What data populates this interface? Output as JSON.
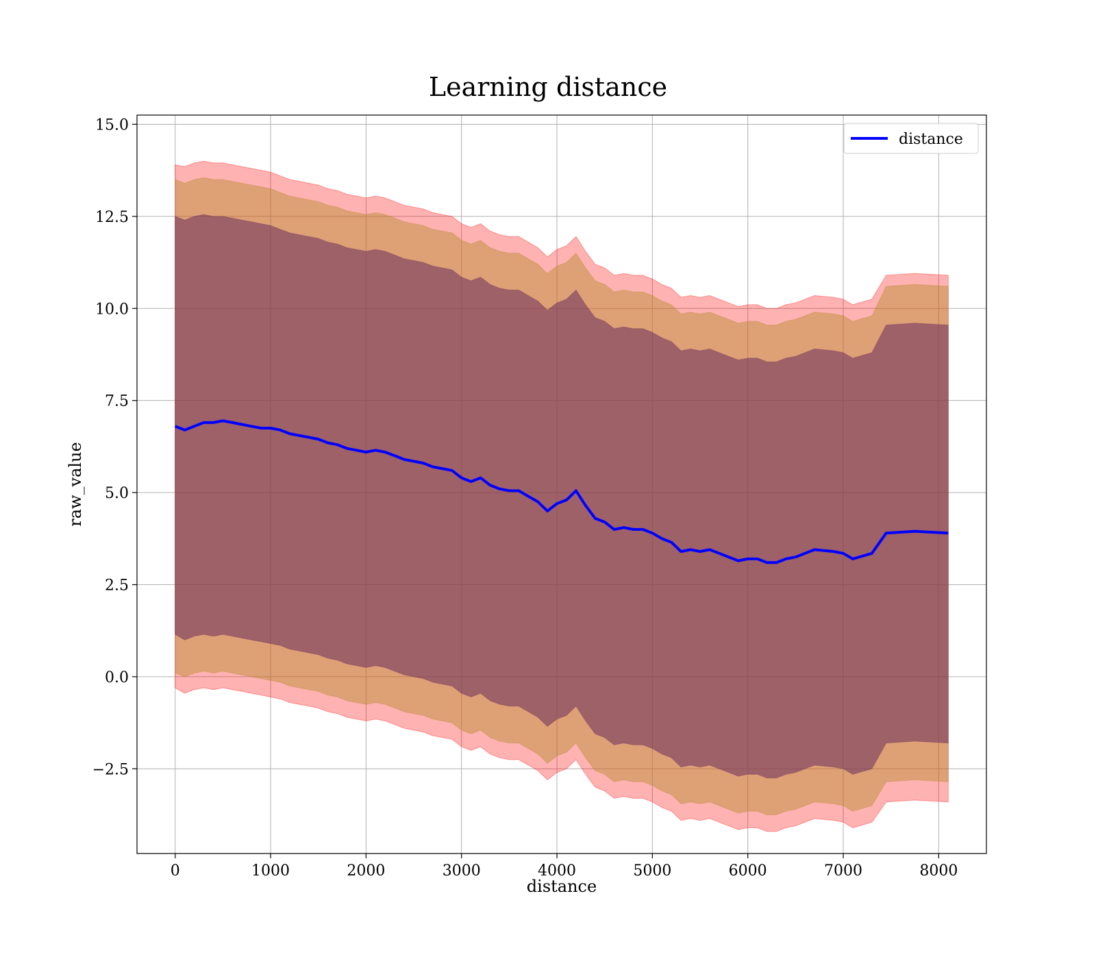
{
  "chart_data": {
    "type": "line",
    "title": "Learning distance",
    "xlabel": "distance",
    "ylabel": "raw_value",
    "xlim": [
      -400,
      8500
    ],
    "ylim": [
      -4.8,
      15.25
    ],
    "xticks": [
      0,
      1000,
      2000,
      3000,
      4000,
      5000,
      6000,
      7000,
      8000
    ],
    "yticks": [
      -2.5,
      0.0,
      2.5,
      5.0,
      7.5,
      10.0,
      12.5,
      15.0
    ],
    "ytick_labels": [
      "−2.5",
      "0.0",
      "2.5",
      "5.0",
      "7.5",
      "10.0",
      "12.5",
      "15.0"
    ],
    "grid": true,
    "legend": {
      "position": "top-right",
      "entries": [
        "distance"
      ]
    },
    "series": [
      {
        "name": "distance",
        "color": "#0000ff",
        "x": [
          0,
          100,
          200,
          300,
          400,
          500,
          600,
          700,
          800,
          900,
          1000,
          1100,
          1200,
          1300,
          1400,
          1500,
          1600,
          1700,
          1800,
          1900,
          2000,
          2100,
          2200,
          2300,
          2400,
          2500,
          2600,
          2700,
          2800,
          2900,
          3000,
          3100,
          3200,
          3300,
          3400,
          3500,
          3600,
          3700,
          3800,
          3900,
          4000,
          4100,
          4200,
          4300,
          4400,
          4500,
          4600,
          4700,
          4800,
          4900,
          5000,
          5100,
          5200,
          5300,
          5400,
          5500,
          5600,
          5700,
          5800,
          5900,
          6000,
          6100,
          6200,
          6300,
          6400,
          6500,
          6600,
          6700,
          6900,
          7000,
          7100,
          7300,
          7450,
          7750,
          8100
        ],
        "values": [
          6.8,
          6.7,
          6.8,
          6.9,
          6.9,
          6.95,
          6.9,
          6.85,
          6.8,
          6.75,
          6.75,
          6.7,
          6.6,
          6.55,
          6.5,
          6.45,
          6.35,
          6.3,
          6.2,
          6.15,
          6.1,
          6.15,
          6.1,
          6.0,
          5.9,
          5.85,
          5.8,
          5.7,
          5.65,
          5.6,
          5.4,
          5.3,
          5.4,
          5.2,
          5.1,
          5.05,
          5.05,
          4.9,
          4.75,
          4.5,
          4.7,
          4.8,
          5.05,
          4.65,
          4.3,
          4.2,
          4.0,
          4.05,
          4.0,
          4.0,
          3.9,
          3.75,
          3.65,
          3.4,
          3.45,
          3.4,
          3.45,
          3.35,
          3.25,
          3.15,
          3.2,
          3.2,
          3.1,
          3.1,
          3.2,
          3.25,
          3.35,
          3.45,
          3.4,
          3.35,
          3.2,
          3.35,
          3.9,
          3.95,
          3.9
        ]
      }
    ],
    "bands": [
      {
        "description_level": "outer",
        "color": "#ff0000",
        "upper": [
          13.9,
          13.85,
          13.95,
          14.0,
          13.95,
          13.95,
          13.9,
          13.85,
          13.8,
          13.75,
          13.7,
          13.6,
          13.5,
          13.45,
          13.4,
          13.35,
          13.25,
          13.2,
          13.1,
          13.05,
          13.0,
          13.05,
          13.0,
          12.9,
          12.8,
          12.75,
          12.7,
          12.6,
          12.55,
          12.5,
          12.3,
          12.2,
          12.3,
          12.1,
          12.0,
          11.95,
          11.95,
          11.8,
          11.65,
          11.4,
          11.6,
          11.7,
          11.95,
          11.55,
          11.2,
          11.1,
          10.9,
          10.95,
          10.9,
          10.9,
          10.8,
          10.65,
          10.55,
          10.3,
          10.35,
          10.3,
          10.35,
          10.25,
          10.15,
          10.05,
          10.1,
          10.1,
          10.0,
          10.0,
          10.1,
          10.15,
          10.25,
          10.35,
          10.3,
          10.25,
          10.1,
          10.25,
          10.9,
          10.95,
          10.9
        ],
        "lower": [
          -0.3,
          -0.45,
          -0.35,
          -0.3,
          -0.35,
          -0.3,
          -0.35,
          -0.4,
          -0.45,
          -0.5,
          -0.55,
          -0.6,
          -0.7,
          -0.75,
          -0.8,
          -0.85,
          -0.95,
          -1.0,
          -1.1,
          -1.15,
          -1.2,
          -1.15,
          -1.2,
          -1.3,
          -1.4,
          -1.45,
          -1.5,
          -1.6,
          -1.65,
          -1.7,
          -1.9,
          -2.0,
          -1.9,
          -2.1,
          -2.2,
          -2.25,
          -2.25,
          -2.4,
          -2.55,
          -2.8,
          -2.6,
          -2.5,
          -2.25,
          -2.65,
          -3.0,
          -3.1,
          -3.3,
          -3.25,
          -3.3,
          -3.3,
          -3.4,
          -3.55,
          -3.65,
          -3.9,
          -3.85,
          -3.9,
          -3.85,
          -3.95,
          -4.05,
          -4.15,
          -4.1,
          -4.1,
          -4.2,
          -4.2,
          -4.1,
          -4.05,
          -3.95,
          -3.85,
          -3.9,
          -3.95,
          -4.1,
          -3.95,
          -3.4,
          -3.35,
          -3.4
        ]
      },
      {
        "description_level": "middle",
        "color": "#b58a2a",
        "upper": [
          13.5,
          13.4,
          13.5,
          13.55,
          13.5,
          13.5,
          13.45,
          13.4,
          13.35,
          13.3,
          13.25,
          13.15,
          13.05,
          13.0,
          12.95,
          12.9,
          12.8,
          12.75,
          12.65,
          12.6,
          12.55,
          12.6,
          12.55,
          12.45,
          12.35,
          12.3,
          12.25,
          12.15,
          12.1,
          12.05,
          11.85,
          11.75,
          11.85,
          11.65,
          11.55,
          11.5,
          11.5,
          11.35,
          11.2,
          10.95,
          11.15,
          11.25,
          11.5,
          11.1,
          10.75,
          10.65,
          10.45,
          10.5,
          10.45,
          10.45,
          10.35,
          10.2,
          10.1,
          9.85,
          9.9,
          9.85,
          9.9,
          9.8,
          9.7,
          9.6,
          9.65,
          9.65,
          9.55,
          9.55,
          9.65,
          9.7,
          9.8,
          9.9,
          9.85,
          9.8,
          9.65,
          9.8,
          10.6,
          10.65,
          10.6
        ],
        "lower": [
          0.1,
          0.0,
          0.1,
          0.15,
          0.1,
          0.15,
          0.1,
          0.05,
          0.0,
          -0.05,
          -0.1,
          -0.15,
          -0.25,
          -0.3,
          -0.35,
          -0.4,
          -0.5,
          -0.55,
          -0.65,
          -0.7,
          -0.75,
          -0.7,
          -0.75,
          -0.85,
          -0.95,
          -1.0,
          -1.05,
          -1.15,
          -1.2,
          -1.25,
          -1.45,
          -1.55,
          -1.45,
          -1.65,
          -1.75,
          -1.8,
          -1.8,
          -1.95,
          -2.1,
          -2.35,
          -2.15,
          -2.05,
          -1.8,
          -2.2,
          -2.55,
          -2.65,
          -2.85,
          -2.8,
          -2.85,
          -2.85,
          -2.95,
          -3.1,
          -3.2,
          -3.45,
          -3.4,
          -3.45,
          -3.4,
          -3.5,
          -3.6,
          -3.7,
          -3.65,
          -3.65,
          -3.75,
          -3.75,
          -3.65,
          -3.6,
          -3.5,
          -3.4,
          -3.45,
          -3.5,
          -3.65,
          -3.5,
          -2.85,
          -2.8,
          -2.85
        ]
      },
      {
        "description_level": "inner",
        "color": "#6b2d5c",
        "upper": [
          12.5,
          12.4,
          12.5,
          12.55,
          12.5,
          12.5,
          12.45,
          12.4,
          12.35,
          12.3,
          12.25,
          12.15,
          12.05,
          12.0,
          11.95,
          11.9,
          11.8,
          11.75,
          11.65,
          11.6,
          11.55,
          11.6,
          11.55,
          11.45,
          11.35,
          11.3,
          11.25,
          11.15,
          11.1,
          11.05,
          10.85,
          10.75,
          10.85,
          10.65,
          10.55,
          10.5,
          10.5,
          10.35,
          10.2,
          9.95,
          10.15,
          10.25,
          10.5,
          10.1,
          9.75,
          9.65,
          9.45,
          9.5,
          9.45,
          9.45,
          9.35,
          9.2,
          9.1,
          8.85,
          8.9,
          8.85,
          8.9,
          8.8,
          8.7,
          8.6,
          8.65,
          8.65,
          8.55,
          8.55,
          8.65,
          8.7,
          8.8,
          8.9,
          8.85,
          8.8,
          8.65,
          8.8,
          9.55,
          9.6,
          9.55
        ],
        "lower": [
          1.15,
          1.0,
          1.1,
          1.15,
          1.1,
          1.15,
          1.1,
          1.05,
          1.0,
          0.95,
          0.9,
          0.85,
          0.75,
          0.7,
          0.65,
          0.6,
          0.5,
          0.45,
          0.35,
          0.3,
          0.25,
          0.3,
          0.25,
          0.15,
          0.05,
          0.0,
          -0.05,
          -0.15,
          -0.2,
          -0.25,
          -0.45,
          -0.55,
          -0.45,
          -0.65,
          -0.75,
          -0.8,
          -0.8,
          -0.95,
          -1.1,
          -1.35,
          -1.15,
          -1.05,
          -0.8,
          -1.2,
          -1.55,
          -1.65,
          -1.85,
          -1.8,
          -1.85,
          -1.85,
          -1.95,
          -2.1,
          -2.2,
          -2.45,
          -2.4,
          -2.45,
          -2.4,
          -2.5,
          -2.6,
          -2.7,
          -2.65,
          -2.65,
          -2.75,
          -2.75,
          -2.65,
          -2.6,
          -2.5,
          -2.4,
          -2.45,
          -2.5,
          -2.65,
          -2.5,
          -1.8,
          -1.75,
          -1.8
        ]
      }
    ]
  }
}
